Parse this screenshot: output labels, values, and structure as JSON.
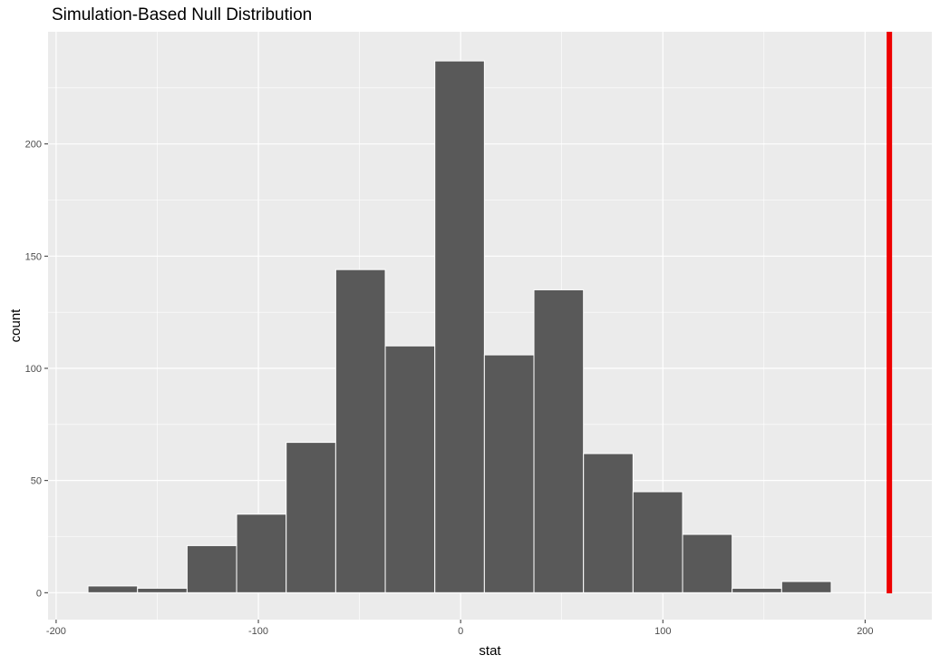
{
  "chart_data": {
    "type": "bar",
    "title": "Simulation-Based Null Distribution",
    "xlabel": "stat",
    "ylabel": "count",
    "xlim": [
      -204,
      233
    ],
    "ylim": [
      -12,
      250
    ],
    "x_ticks": [
      -200,
      -100,
      0,
      100,
      200
    ],
    "y_ticks": [
      0,
      50,
      100,
      150,
      200
    ],
    "grid": true,
    "bin_width": 24.5,
    "bins": [
      {
        "center": -172,
        "count": 3
      },
      {
        "center": -147.5,
        "count": 2
      },
      {
        "center": -123,
        "count": 21
      },
      {
        "center": -98.5,
        "count": 35
      },
      {
        "center": -74,
        "count": 67
      },
      {
        "center": -49.5,
        "count": 144
      },
      {
        "center": -25,
        "count": 110
      },
      {
        "center": -0.5,
        "count": 237
      },
      {
        "center": 24,
        "count": 106
      },
      {
        "center": 48.5,
        "count": 135
      },
      {
        "center": 73,
        "count": 62
      },
      {
        "center": 97.5,
        "count": 45
      },
      {
        "center": 122,
        "count": 26
      },
      {
        "center": 146.5,
        "count": 2
      },
      {
        "center": 171,
        "count": 5
      }
    ],
    "shaded_region": {
      "x_start": -184,
      "x_end": -172,
      "count": 3
    },
    "observed_stat": 212,
    "colors": {
      "panel": "#ebebeb",
      "grid_major": "#ffffff",
      "bar_fill": "#595959",
      "bar_outline": "#ffffff",
      "shade": "#c49aa0",
      "observed_line": "#ee0000"
    }
  }
}
